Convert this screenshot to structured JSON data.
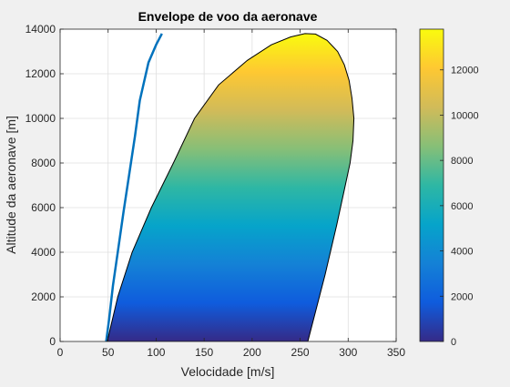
{
  "chart_data": {
    "type": "area",
    "title": "Envelope de voo da aeronave",
    "xlabel": "Velocidade [m/s]",
    "ylabel": "Altitude da aeronave [m]",
    "xlim": [
      0,
      350
    ],
    "ylim": [
      0,
      14000
    ],
    "x_ticks": [
      0,
      50,
      100,
      150,
      200,
      250,
      300,
      350
    ],
    "y_ticks": [
      0,
      2000,
      4000,
      6000,
      8000,
      10000,
      12000,
      14000
    ],
    "grid": true,
    "series": [
      {
        "style": "line",
        "color": "#0072bd",
        "x": [
          48,
          51,
          55,
          60,
          66,
          72,
          78,
          83,
          92,
          100,
          106
        ],
        "y": [
          0,
          1000,
          2500,
          4000,
          5800,
          7500,
          9200,
          10800,
          12500,
          13300,
          13800
        ]
      },
      {
        "style": "filled-envelope",
        "colormap": "parula",
        "fill_by": "altitude",
        "x": [
          49,
          60,
          75,
          95,
          118,
          140,
          165,
          195,
          220,
          240,
          255,
          266,
          278,
          289,
          296,
          301,
          304,
          306,
          305,
          302,
          296,
          288,
          276,
          258
        ],
        "y": [
          0,
          2000,
          4000,
          6000,
          8000,
          10000,
          11500,
          12600,
          13300,
          13650,
          13800,
          13780,
          13500,
          13000,
          12400,
          11700,
          10900,
          10000,
          9000,
          8000,
          6800,
          5200,
          3000,
          0
        ]
      }
    ],
    "colorbar": {
      "lim": [
        0,
        13800
      ],
      "ticks": [
        0,
        2000,
        4000,
        6000,
        8000,
        10000,
        12000
      ],
      "stops": [
        "#352a87",
        "#0f5cdd",
        "#1481d6",
        "#06a4ca",
        "#2eb7a4",
        "#87bf77",
        "#d1bb59",
        "#fec832",
        "#f9fb0e"
      ]
    }
  }
}
